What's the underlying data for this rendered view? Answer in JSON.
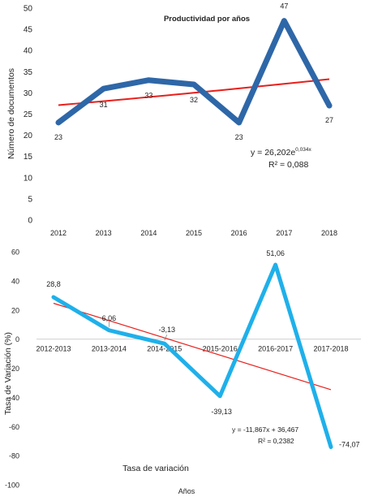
{
  "chart_data": [
    {
      "type": "line",
      "title": "Productividad por años",
      "ylabel": "Número de documentos",
      "xlabel": "",
      "categories": [
        "2012",
        "2013",
        "2014",
        "2015",
        "2016",
        "2017",
        "2018"
      ],
      "series": [
        {
          "name": "",
          "values": [
            23,
            31,
            33,
            32,
            23,
            47,
            27
          ],
          "color": "#2e67a8"
        }
      ],
      "data_labels": [
        "23",
        "31",
        "33",
        "32",
        "23",
        "47",
        "27"
      ],
      "yticks": [
        "0",
        "5",
        "10",
        "15",
        "20",
        "25",
        "30",
        "35",
        "40",
        "45",
        "50"
      ],
      "ylim": [
        0,
        50
      ],
      "grid": false,
      "trendline": {
        "type": "exponential",
        "color": "#e8201c",
        "a": 26.202,
        "b": 0.034,
        "equation_prefix": "y = 26,202e",
        "equation_exponent": "0,034x",
        "r2_label": "R² = 0,088"
      }
    },
    {
      "type": "line",
      "title": "",
      "ylabel": "Tasa de Variación (%)",
      "xlabel": "Años",
      "categories": [
        "2012-2013",
        "2013-2014",
        "2014-2015",
        "2015-2016",
        "2016-2017",
        "2017-2018"
      ],
      "series": [
        {
          "name": "Tasa de variación",
          "values": [
            28.8,
            6.06,
            -3.13,
            -39.13,
            51.06,
            -74.07
          ],
          "color": "#1fb0ea"
        }
      ],
      "data_labels": [
        "28,8",
        "6,06",
        "-3,13",
        "-39,13",
        "51,06",
        "-74,07"
      ],
      "yticks": [
        "-100",
        "-80",
        "-60",
        "-40",
        "-20",
        "0",
        "20",
        "40",
        "60"
      ],
      "ylim": [
        -100,
        60
      ],
      "legend": "bottom",
      "grid": false,
      "trendline": {
        "type": "linear",
        "color": "#e8201c",
        "slope": -11.867,
        "intercept": 36.467,
        "equation": "y = -11,867x + 36,467",
        "r2_label": "R² = 0,2382"
      }
    }
  ]
}
